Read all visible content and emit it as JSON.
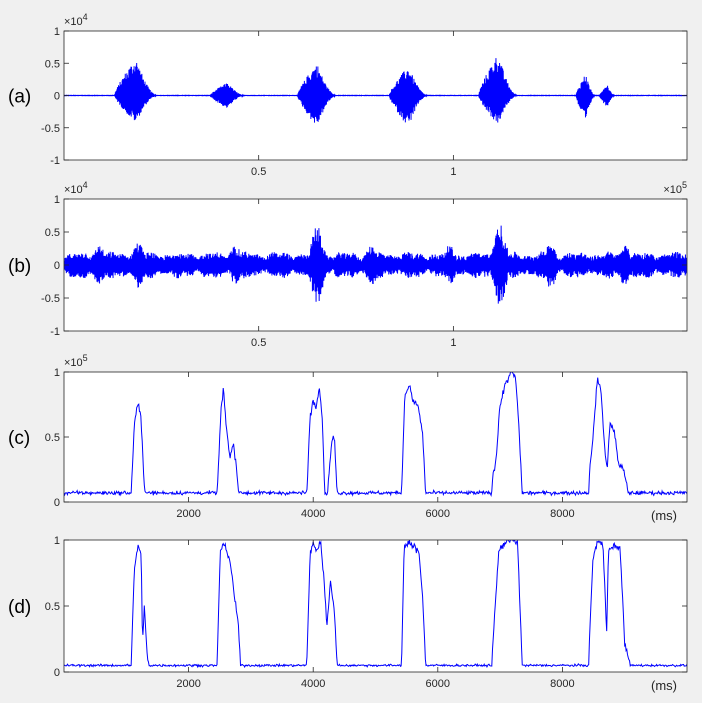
{
  "figure": {
    "background": "#f0f0f0",
    "line_color": "#0000ff",
    "axis_color": "#262626"
  },
  "chart_data": [
    {
      "panel_label": "(a)",
      "type": "line",
      "description_free": true,
      "xlim": [
        0,
        1.6
      ],
      "ylim": [
        -1,
        1
      ],
      "x_ticks": [
        0.5,
        1
      ],
      "x_tick_labels": [
        "0.5",
        "1"
      ],
      "y_ticks": [
        -1,
        -0.5,
        0,
        0.5,
        1
      ],
      "y_tick_labels": [
        "-1",
        "-0.5",
        "0",
        "0.5",
        "1"
      ],
      "y_exponent": {
        "base": "×10",
        "power": "4"
      },
      "x_exponent": null,
      "xlabel": "",
      "signal": "burst",
      "bursts": [
        {
          "x": 0.185,
          "width": 0.11,
          "amp_pos": 0.58,
          "amp_neg": 0.42
        },
        {
          "x": 0.42,
          "width": 0.09,
          "amp_pos": 0.2,
          "amp_neg": 0.2
        },
        {
          "x": 0.65,
          "width": 0.1,
          "amp_pos": 0.5,
          "amp_neg": 0.48
        },
        {
          "x": 0.885,
          "width": 0.1,
          "amp_pos": 0.45,
          "amp_neg": 0.48
        },
        {
          "x": 1.115,
          "width": 0.1,
          "amp_pos": 0.65,
          "amp_neg": 0.45
        },
        {
          "x": 1.34,
          "width": 0.05,
          "amp_pos": 0.34,
          "amp_neg": 0.42
        },
        {
          "x": 1.395,
          "width": 0.04,
          "amp_pos": 0.18,
          "amp_neg": 0.18
        }
      ]
    },
    {
      "panel_label": "(b)",
      "type": "line",
      "xlim": [
        0,
        1.6
      ],
      "ylim": [
        -1,
        1
      ],
      "x_ticks": [
        0.5,
        1
      ],
      "x_tick_labels": [
        "0.5",
        "1"
      ],
      "y_ticks": [
        -1,
        -0.5,
        0,
        0.5,
        1
      ],
      "y_tick_labels": [
        "-1",
        "-0.5",
        "0",
        "0.5",
        "1"
      ],
      "y_exponent": {
        "base": "×10",
        "power": "4"
      },
      "x_exponent": {
        "base": "×10",
        "power": "5"
      },
      "xlabel": "",
      "signal": "noise",
      "noise_base": 0.16,
      "noise_peaks": [
        {
          "x": 0.09,
          "amp": 0.3
        },
        {
          "x": 0.19,
          "amp": 0.35
        },
        {
          "x": 0.44,
          "amp": 0.3
        },
        {
          "x": 0.65,
          "amp": 0.6
        },
        {
          "x": 0.79,
          "amp": 0.3
        },
        {
          "x": 0.99,
          "amp": 0.3
        },
        {
          "x": 1.12,
          "amp": 0.62
        },
        {
          "x": 1.25,
          "amp": 0.35
        },
        {
          "x": 1.44,
          "amp": 0.3
        }
      ]
    },
    {
      "panel_label": "(c)",
      "type": "line",
      "xlim": [
        0,
        10000
      ],
      "ylim": [
        0,
        1
      ],
      "x_ticks": [
        2000,
        4000,
        6000,
        8000
      ],
      "x_tick_labels": [
        "2000",
        "4000",
        "6000",
        "8000"
      ],
      "y_ticks": [
        0,
        0.5,
        1
      ],
      "y_tick_labels": [
        "0",
        "0.5",
        "1"
      ],
      "y_exponent": {
        "base": "×10",
        "power": "5"
      },
      "x_exponent": null,
      "xlabel": "(ms)",
      "signal": "envelope",
      "baseline": 0.07,
      "noise": 0.025,
      "segments": [
        {
          "x0": 1080,
          "x1": 1290,
          "points": [
            [
              1080,
              0.1
            ],
            [
              1130,
              0.6
            ],
            [
              1180,
              0.75
            ],
            [
              1230,
              0.7
            ],
            [
              1290,
              0.12
            ]
          ]
        },
        {
          "x0": 2460,
          "x1": 2800,
          "points": [
            [
              2460,
              0.1
            ],
            [
              2520,
              0.7
            ],
            [
              2560,
              0.88
            ],
            [
              2600,
              0.6
            ],
            [
              2660,
              0.35
            ],
            [
              2720,
              0.45
            ],
            [
              2760,
              0.3
            ],
            [
              2800,
              0.1
            ]
          ]
        },
        {
          "x0": 3900,
          "x1": 4180,
          "points": [
            [
              3900,
              0.1
            ],
            [
              3950,
              0.65
            ],
            [
              4000,
              0.78
            ],
            [
              4050,
              0.72
            ],
            [
              4100,
              0.9
            ],
            [
              4150,
              0.6
            ],
            [
              4180,
              0.15
            ]
          ]
        },
        {
          "x0": 4240,
          "x1": 4380,
          "points": [
            [
              4240,
              0.15
            ],
            [
              4300,
              0.48
            ],
            [
              4340,
              0.5
            ],
            [
              4380,
              0.1
            ]
          ]
        },
        {
          "x0": 5420,
          "x1": 5800,
          "points": [
            [
              5420,
              0.1
            ],
            [
              5470,
              0.82
            ],
            [
              5540,
              0.9
            ],
            [
              5600,
              0.78
            ],
            [
              5680,
              0.75
            ],
            [
              5760,
              0.5
            ],
            [
              5800,
              0.1
            ]
          ]
        },
        {
          "x0": 6870,
          "x1": 7350,
          "points": [
            [
              6870,
              0.15
            ],
            [
              6940,
              0.35
            ],
            [
              6990,
              0.72
            ],
            [
              7080,
              0.9
            ],
            [
              7180,
              1.0
            ],
            [
              7250,
              0.95
            ],
            [
              7300,
              0.6
            ],
            [
              7350,
              0.12
            ]
          ]
        },
        {
          "x0": 8430,
          "x1": 9050,
          "points": [
            [
              8430,
              0.2
            ],
            [
              8500,
              0.55
            ],
            [
              8560,
              0.95
            ],
            [
              8620,
              0.85
            ],
            [
              8680,
              0.4
            ],
            [
              8720,
              0.25
            ],
            [
              8760,
              0.6
            ],
            [
              8830,
              0.55
            ],
            [
              8900,
              0.3
            ],
            [
              8980,
              0.25
            ],
            [
              9050,
              0.1
            ]
          ]
        }
      ]
    },
    {
      "panel_label": "(d)",
      "type": "line",
      "xlim": [
        0,
        10000
      ],
      "ylim": [
        0,
        1
      ],
      "x_ticks": [
        2000,
        4000,
        6000,
        8000
      ],
      "x_tick_labels": [
        "2000",
        "4000",
        "6000",
        "8000"
      ],
      "y_ticks": [
        0,
        0.5,
        1
      ],
      "y_tick_labels": [
        "0",
        "0.5",
        "1"
      ],
      "y_exponent": null,
      "x_exponent": null,
      "xlabel": "(ms)",
      "signal": "envelope",
      "baseline": 0.05,
      "noise": 0.015,
      "segments": [
        {
          "x0": 1080,
          "x1": 1360,
          "points": [
            [
              1080,
              0.08
            ],
            [
              1130,
              0.8
            ],
            [
              1190,
              0.95
            ],
            [
              1240,
              0.88
            ],
            [
              1260,
              0.2
            ],
            [
              1290,
              0.5
            ],
            [
              1330,
              0.15
            ],
            [
              1360,
              0.06
            ]
          ]
        },
        {
          "x0": 2460,
          "x1": 2830,
          "points": [
            [
              2460,
              0.1
            ],
            [
              2510,
              0.92
            ],
            [
              2560,
              0.98
            ],
            [
              2620,
              0.92
            ],
            [
              2680,
              0.8
            ],
            [
              2740,
              0.55
            ],
            [
              2790,
              0.4
            ],
            [
              2830,
              0.1
            ]
          ]
        },
        {
          "x0": 3900,
          "x1": 4380,
          "points": [
            [
              3900,
              0.1
            ],
            [
              3950,
              0.9
            ],
            [
              4000,
              0.97
            ],
            [
              4060,
              0.92
            ],
            [
              4120,
              0.98
            ],
            [
              4170,
              0.72
            ],
            [
              4220,
              0.35
            ],
            [
              4280,
              0.7
            ],
            [
              4340,
              0.45
            ],
            [
              4380,
              0.1
            ]
          ]
        },
        {
          "x0": 5420,
          "x1": 5800,
          "points": [
            [
              5420,
              0.1
            ],
            [
              5460,
              0.95
            ],
            [
              5540,
              0.98
            ],
            [
              5620,
              0.95
            ],
            [
              5700,
              0.9
            ],
            [
              5760,
              0.55
            ],
            [
              5800,
              0.1
            ]
          ]
        },
        {
          "x0": 6870,
          "x1": 7350,
          "points": [
            [
              6870,
              0.1
            ],
            [
              6920,
              0.5
            ],
            [
              6980,
              0.92
            ],
            [
              7080,
              0.98
            ],
            [
              7180,
              1.0
            ],
            [
              7280,
              0.98
            ],
            [
              7320,
              0.5
            ],
            [
              7350,
              0.1
            ]
          ]
        },
        {
          "x0": 8430,
          "x1": 9080,
          "points": [
            [
              8430,
              0.2
            ],
            [
              8490,
              0.85
            ],
            [
              8560,
              0.99
            ],
            [
              8650,
              0.97
            ],
            [
              8690,
              0.55
            ],
            [
              8710,
              0.3
            ],
            [
              8740,
              0.92
            ],
            [
              8830,
              0.95
            ],
            [
              8920,
              0.95
            ],
            [
              8970,
              0.55
            ],
            [
              9000,
              0.2
            ],
            [
              9080,
              0.08
            ]
          ]
        }
      ]
    }
  ]
}
